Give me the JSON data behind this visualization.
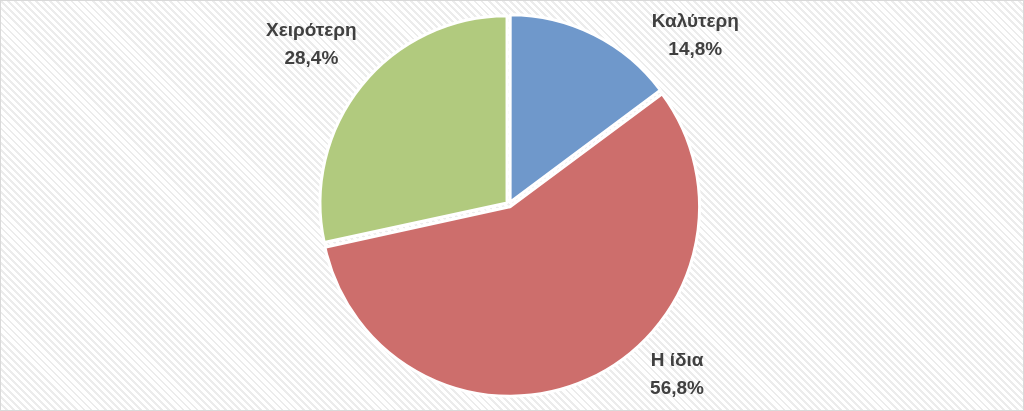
{
  "chart_data": {
    "type": "pie",
    "categories": [
      "Καλύτερη",
      "Η ίδια",
      "Χειρότερη"
    ],
    "values": [
      14.8,
      56.8,
      28.4
    ],
    "colors": [
      "#6f98cb",
      "#cd6e6c",
      "#b1ca7e"
    ],
    "value_labels": [
      "14,8%",
      "56,8%",
      "28,4%"
    ],
    "legend": false
  }
}
